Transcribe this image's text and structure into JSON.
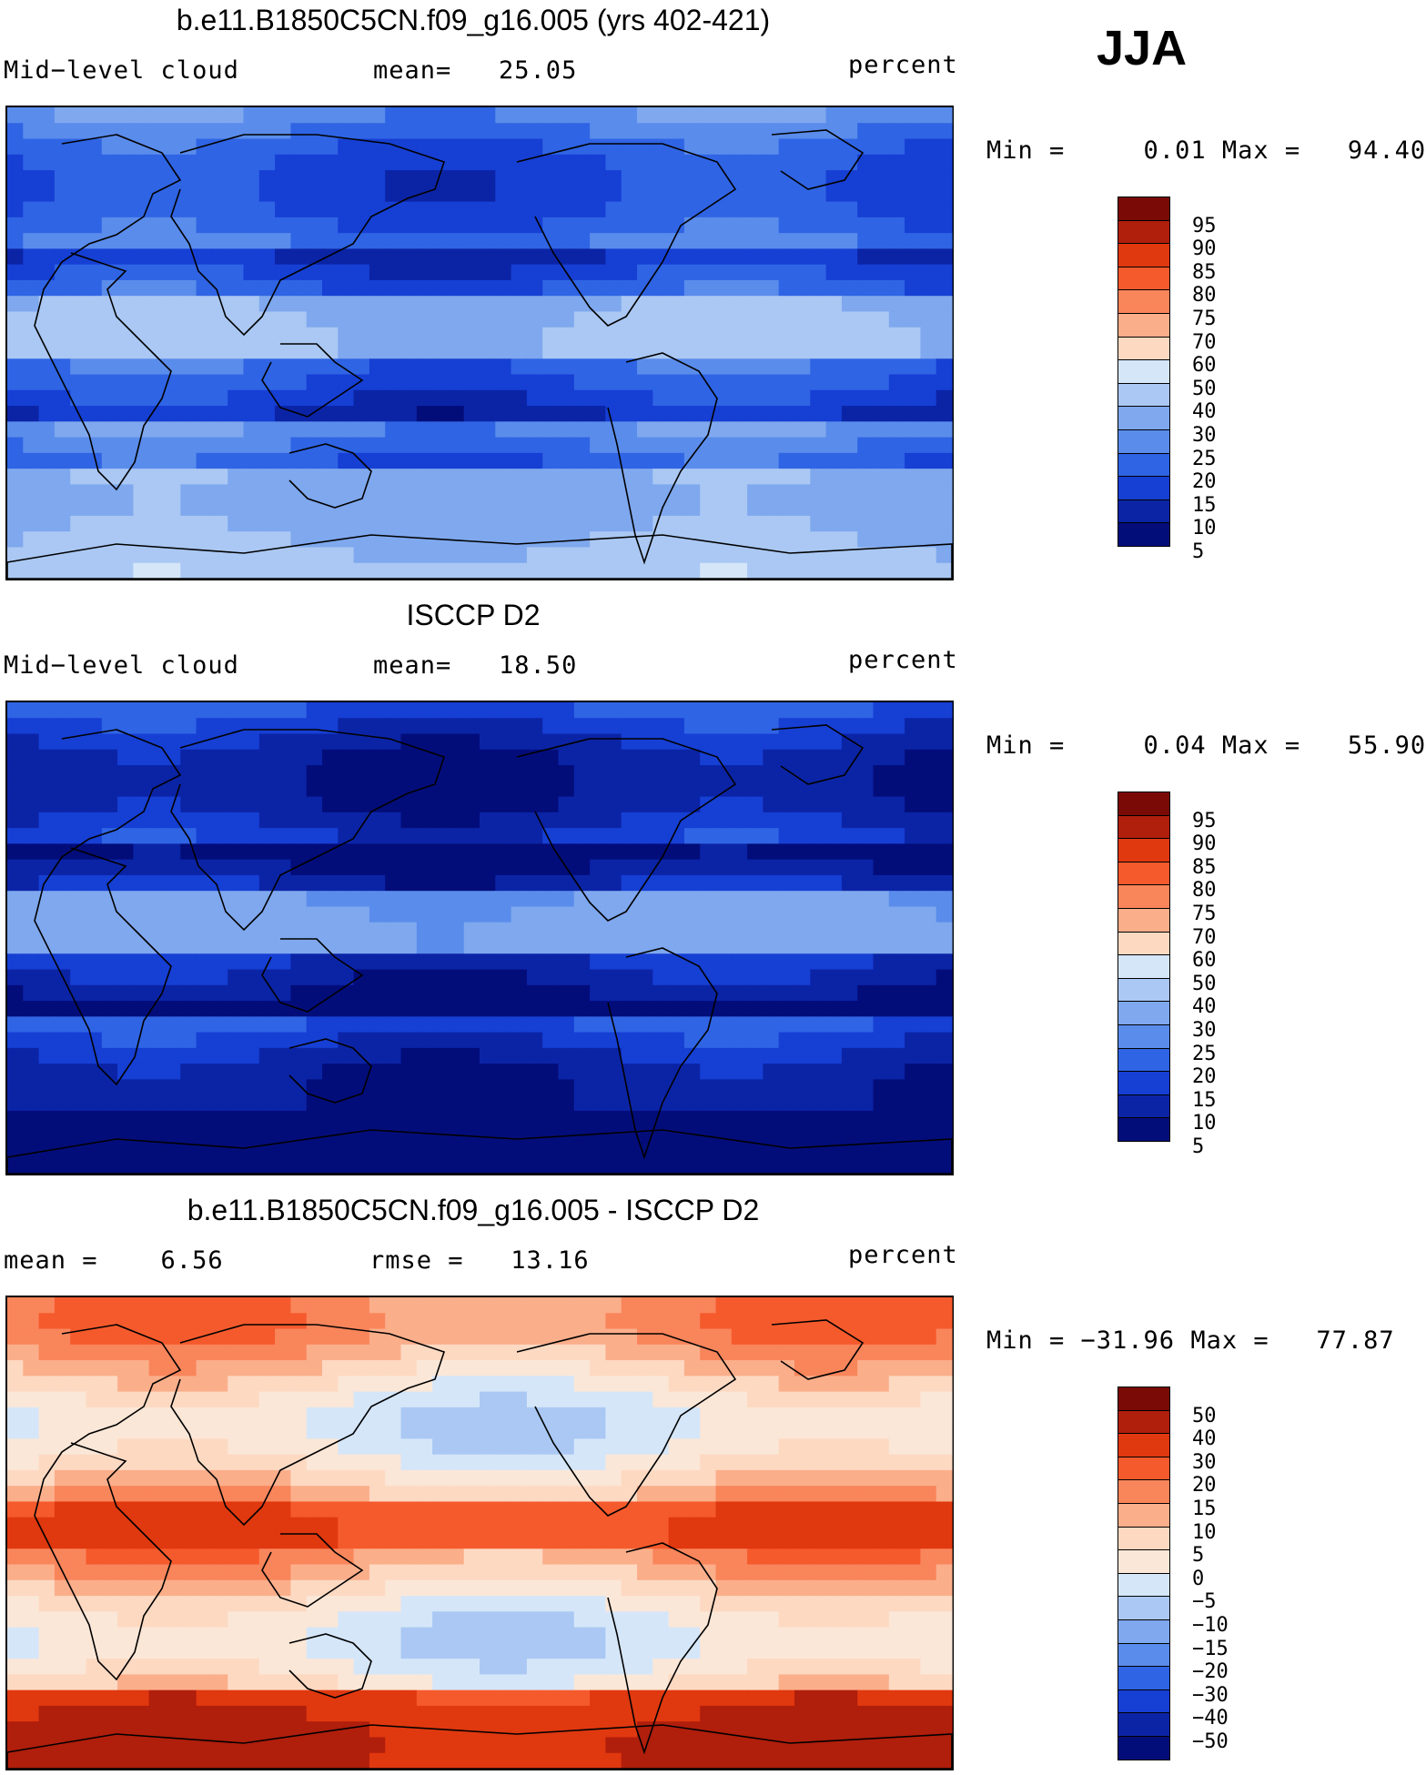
{
  "season": "JJA",
  "panels": [
    {
      "title": "b.e11.B1850C5CN.f09_g16.005 (yrs 402-421)",
      "left_label": "Mid−level cloud",
      "center_label": "mean=   25.05",
      "units": "percent",
      "minmax": "Min =     0.01 Max =   94.40",
      "colorbar_labels": [
        "95",
        "90",
        "85",
        "80",
        "75",
        "70",
        "60",
        "50",
        "40",
        "30",
        "25",
        "20",
        "15",
        "10",
        "5"
      ],
      "colors": [
        "#7a0a06",
        "#b01e0c",
        "#e0380f",
        "#f55a2c",
        "#f9855b",
        "#fbae8a",
        "#fdd9c2",
        "#d5e6f9",
        "#aac8f3",
        "#7fa8ee",
        "#5a8ceb",
        "#2f64e4",
        "#163fd4",
        "#0b24a6",
        "#030d7a"
      ],
      "map_kind": "model"
    },
    {
      "title": "ISCCP D2",
      "left_label": "Mid−level cloud",
      "center_label": "mean=   18.50",
      "units": "percent",
      "minmax": "Min =     0.04 Max =   55.90",
      "colorbar_labels": [
        "95",
        "90",
        "85",
        "80",
        "75",
        "70",
        "60",
        "50",
        "40",
        "30",
        "25",
        "20",
        "15",
        "10",
        "5"
      ],
      "colors": [
        "#7a0a06",
        "#b01e0c",
        "#e0380f",
        "#f55a2c",
        "#f9855b",
        "#fbae8a",
        "#fdd9c2",
        "#d5e6f9",
        "#aac8f3",
        "#7fa8ee",
        "#5a8ceb",
        "#2f64e4",
        "#163fd4",
        "#0b24a6",
        "#030d7a"
      ],
      "map_kind": "obs"
    },
    {
      "title": "b.e11.B1850C5CN.f09_g16.005 - ISCCP D2",
      "left_label": "mean =    6.56",
      "center_label": "rmse =   13.16",
      "units": "percent",
      "minmax": "Min = −31.96 Max =   77.87",
      "colorbar_labels": [
        "50",
        "40",
        "30",
        "20",
        "15",
        "10",
        "5",
        "0",
        "−5",
        "−10",
        "−15",
        "−20",
        "−30",
        "−40",
        "−50"
      ],
      "colors": [
        "#7a0a06",
        "#b01e0c",
        "#e0380f",
        "#f55a2c",
        "#f9855b",
        "#fbae8a",
        "#fdd9c2",
        "#fbe7d7",
        "#d5e6f9",
        "#aac8f3",
        "#7fa8ee",
        "#5a8ceb",
        "#2f64e4",
        "#163fd4",
        "#0b24a6",
        "#030d7a"
      ],
      "map_kind": "diff"
    }
  ]
}
